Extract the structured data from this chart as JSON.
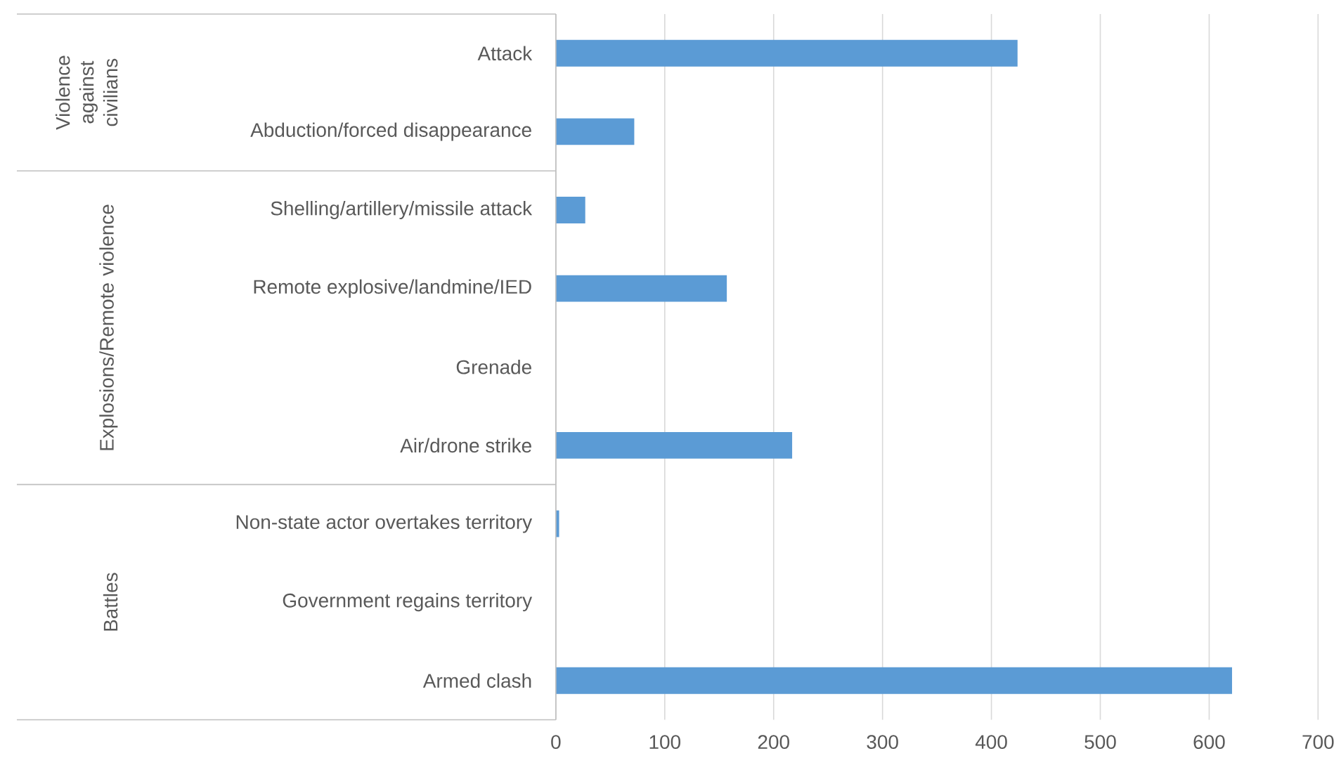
{
  "chart_data": {
    "type": "bar",
    "orientation": "horizontal",
    "categories": [
      "Attack",
      "Abduction/forced disappearance",
      "Shelling/artillery/missile attack",
      "Remote explosive/landmine/IED",
      "Grenade",
      "Air/drone strike",
      "Non-state actor overtakes territory",
      "Government regains territory",
      "Armed clash"
    ],
    "values": [
      424,
      72,
      27,
      157,
      0,
      217,
      3,
      0,
      621
    ],
    "color": "#5b9bd5",
    "xlim": [
      0,
      700
    ],
    "xticks": [
      0,
      100,
      200,
      300,
      400,
      500,
      600,
      700
    ],
    "grid": "x",
    "annotations": [
      "Violence against civilians",
      "Explosions/Remote violence",
      "Battles"
    ]
  }
}
